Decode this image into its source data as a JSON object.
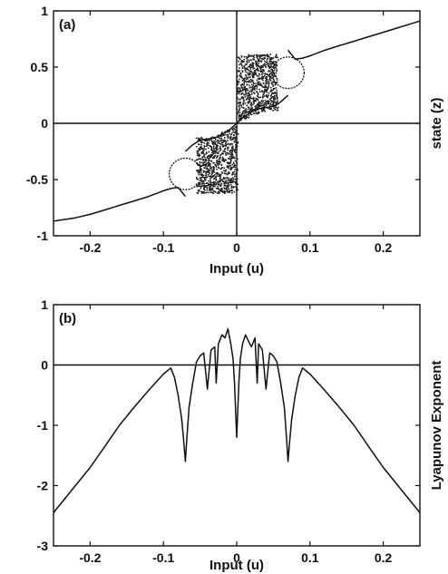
{
  "chart_data": [
    {
      "type": "scatter",
      "panel_label": "(a)",
      "xlabel": "Input (u)",
      "ylabel": "state (z)",
      "xlim": [
        -0.25,
        0.25
      ],
      "ylim": [
        -1,
        1
      ],
      "xticks": [
        -0.2,
        -0.1,
        0,
        0.1,
        0.2
      ],
      "xtick_labels": [
        "-0.2",
        "-0.1",
        "0",
        "0.1",
        "0.2"
      ],
      "yticks": [
        1,
        0.5,
        0,
        -0.5,
        -1
      ],
      "ytick_labels": [
        "1",
        "0.5",
        "0",
        "-0.5",
        "-1"
      ],
      "grid": false,
      "zero_lines": true,
      "series": [
        {
          "description_points": "upper stable branch",
          "x": [
            0.07,
            0.08,
            0.09,
            0.1,
            0.12,
            0.14,
            0.16,
            0.18,
            0.2,
            0.22,
            0.25
          ],
          "y": [
            0.65,
            0.57,
            0.58,
            0.6,
            0.65,
            0.69,
            0.73,
            0.77,
            0.81,
            0.85,
            0.91
          ]
        },
        {
          "x": [
            -0.25,
            -0.22,
            -0.2,
            -0.18,
            -0.16,
            -0.14,
            -0.12,
            -0.1,
            -0.09,
            -0.08,
            -0.07
          ],
          "y": [
            -0.87,
            -0.84,
            -0.81,
            -0.77,
            -0.73,
            -0.69,
            -0.65,
            -0.6,
            -0.58,
            -0.57,
            -0.65
          ]
        },
        {
          "x": [
            0.0,
            0.01,
            0.02,
            0.03,
            0.04,
            0.05,
            0.06,
            0.07
          ],
          "y": [
            0.0,
            0.06,
            0.1,
            0.13,
            0.14,
            0.15,
            0.19,
            0.25
          ]
        },
        {
          "x": [
            -0.07,
            -0.06,
            -0.05,
            -0.04,
            -0.03,
            -0.02,
            -0.01,
            0.0
          ],
          "y": [
            -0.25,
            -0.19,
            -0.15,
            -0.14,
            -0.13,
            -0.1,
            -0.06,
            0.0
          ]
        }
      ],
      "bubbles": [
        {
          "cx": 0.07,
          "cy": 0.45,
          "rx": 0.022,
          "ry": 0.14
        },
        {
          "cx": -0.07,
          "cy": -0.45,
          "rx": 0.022,
          "ry": 0.14
        }
      ],
      "chaotic_bands": [
        {
          "x_range": [
            0.0,
            0.055
          ],
          "y_range": [
            0.1,
            0.62
          ]
        },
        {
          "x_range": [
            -0.055,
            0.0
          ],
          "y_range": [
            -0.62,
            -0.1
          ]
        }
      ]
    },
    {
      "type": "line",
      "panel_label": "(b)",
      "xlabel": "Input (u)",
      "ylabel": "Lyapunov Exponent",
      "xlim": [
        -0.25,
        0.25
      ],
      "ylim": [
        -3,
        1
      ],
      "xticks": [
        -0.2,
        -0.1,
        0,
        0.1,
        0.2
      ],
      "xtick_labels": [
        "-0.2",
        "-0.1",
        "0",
        "0.1",
        "0.2"
      ],
      "yticks": [
        1,
        0,
        -1,
        -2,
        -3
      ],
      "ytick_labels": [
        "1",
        "0",
        "-1",
        "-2",
        "-3"
      ],
      "grid": false,
      "zero_lines": true,
      "series": [
        {
          "x": [
            -0.25,
            -0.22,
            -0.2,
            -0.18,
            -0.16,
            -0.14,
            -0.12,
            -0.1,
            -0.09,
            -0.085,
            -0.08,
            -0.075,
            -0.072,
            -0.07,
            -0.068,
            -0.065,
            -0.06,
            -0.055,
            -0.05,
            -0.045,
            -0.04,
            -0.035,
            -0.03,
            -0.028,
            -0.025,
            -0.02,
            -0.016,
            -0.012,
            -0.008,
            -0.005,
            -0.003,
            0.0,
            0.003,
            0.005,
            0.008,
            0.012,
            0.016,
            0.02,
            0.025,
            0.028,
            0.03,
            0.035,
            0.04,
            0.045,
            0.05,
            0.055,
            0.06,
            0.065,
            0.068,
            0.07,
            0.072,
            0.075,
            0.08,
            0.085,
            0.09,
            0.1,
            0.12,
            0.14,
            0.16,
            0.18,
            0.2,
            0.22,
            0.25
          ],
          "y": [
            -2.45,
            -2.0,
            -1.7,
            -1.35,
            -1.0,
            -0.7,
            -0.42,
            -0.15,
            -0.05,
            -0.2,
            -0.5,
            -0.9,
            -1.3,
            -1.6,
            -1.2,
            -0.7,
            -0.3,
            0.05,
            0.15,
            0.2,
            -0.4,
            0.25,
            0.3,
            -0.3,
            0.35,
            0.5,
            0.45,
            0.6,
            0.35,
            0.1,
            -0.3,
            -1.2,
            -0.3,
            0.1,
            0.35,
            0.5,
            0.4,
            0.3,
            0.45,
            -0.3,
            0.35,
            0.25,
            -0.4,
            0.2,
            0.15,
            0.05,
            -0.3,
            -0.7,
            -1.2,
            -1.6,
            -1.3,
            -0.9,
            -0.5,
            -0.2,
            -0.05,
            -0.15,
            -0.42,
            -0.7,
            -1.0,
            -1.35,
            -1.7,
            -2.0,
            -2.45
          ]
        }
      ]
    }
  ]
}
